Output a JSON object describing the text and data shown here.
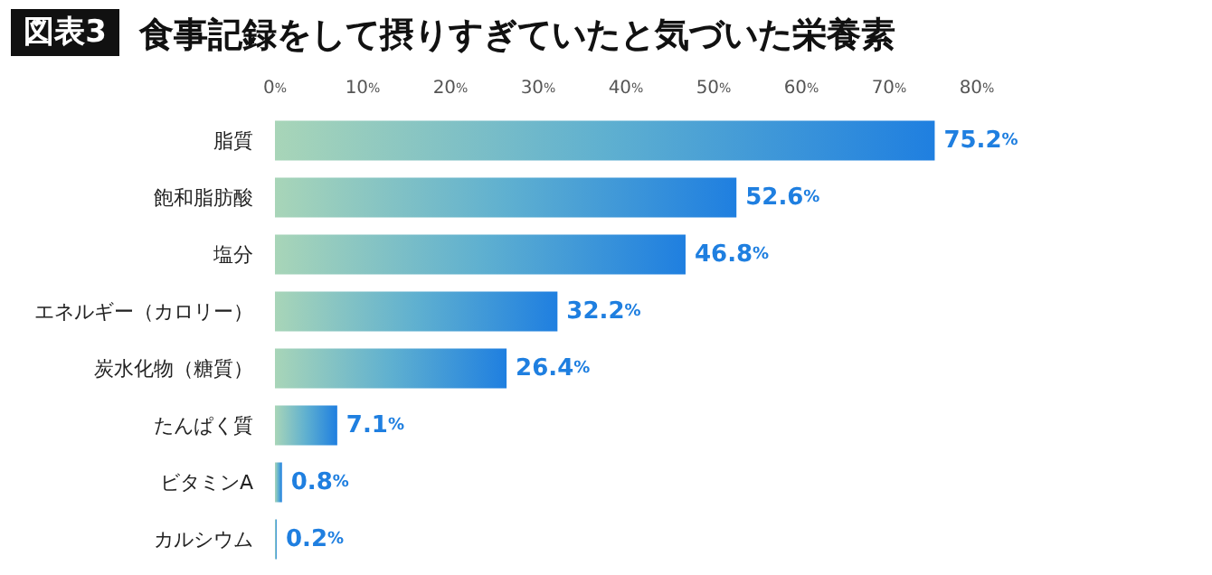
{
  "chart_data": {
    "type": "bar",
    "orientation": "horizontal",
    "title": "食事記録をして摂りすぎていたと気づいた栄養素",
    "annotations": [
      "図表3"
    ],
    "categories": [
      "脂質",
      "飽和脂肪酸",
      "塩分",
      "エネルギー（カロリー）",
      "炭水化物（糖質）",
      "たんぱく質",
      "ビタミンA",
      "カルシウム"
    ],
    "values": [
      75.2,
      52.6,
      46.8,
      32.2,
      26.4,
      7.1,
      0.8,
      0.2
    ],
    "value_labels": [
      "75.2%",
      "52.6%",
      "46.8%",
      "32.2%",
      "26.4%",
      "7.1%",
      "0.8%",
      "0.2%"
    ],
    "color": "#1f7fe0",
    "xlim": [
      0,
      80
    ],
    "xticks": [
      {
        "value": 0,
        "label": "0%"
      },
      {
        "value": 10,
        "label": "10%"
      },
      {
        "value": 20,
        "label": "20%"
      },
      {
        "value": 30,
        "label": "30%"
      },
      {
        "value": 40,
        "label": "40%"
      },
      {
        "value": 50,
        "label": "50%"
      },
      {
        "value": 60,
        "label": "60%"
      },
      {
        "value": 70,
        "label": "70%"
      },
      {
        "value": 80,
        "label": "80%"
      }
    ],
    "grid": false
  }
}
